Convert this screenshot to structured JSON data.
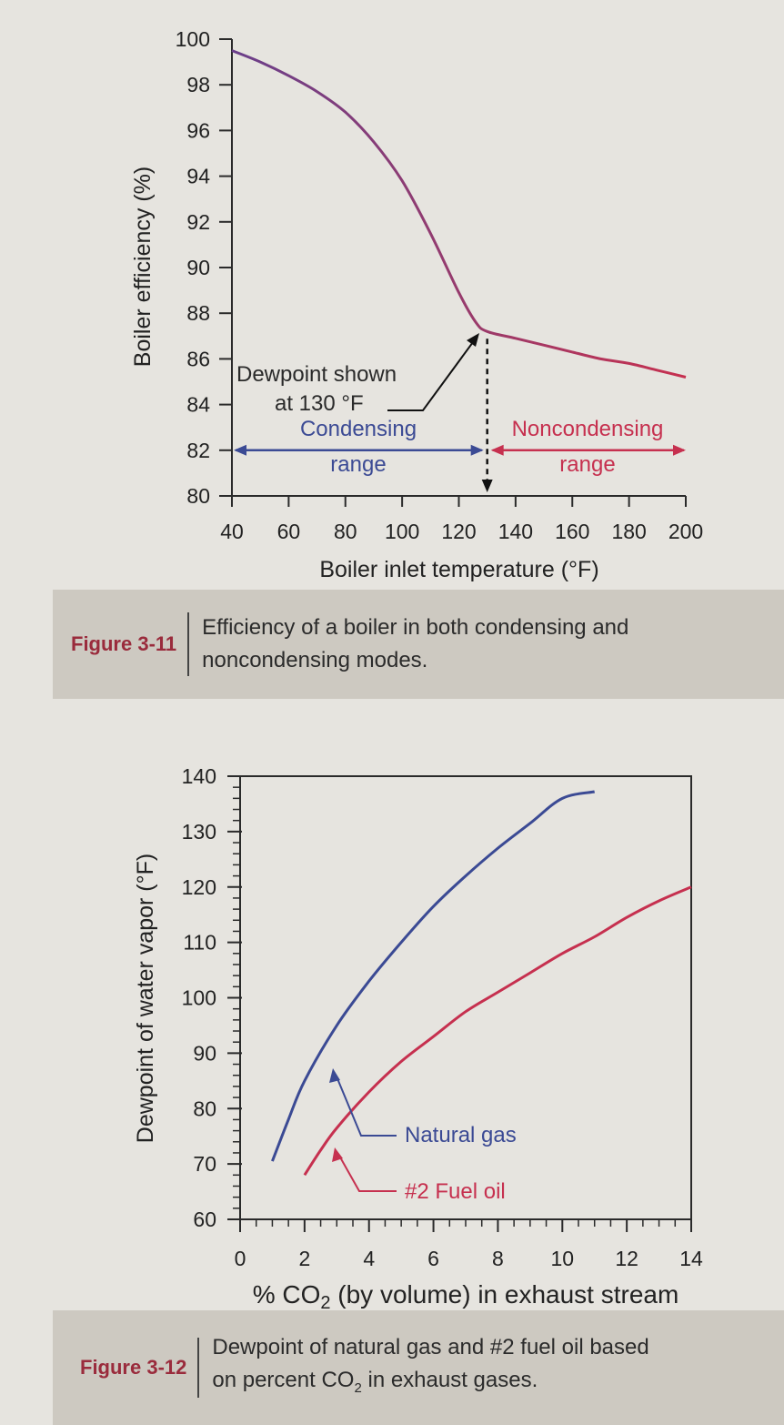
{
  "colors": {
    "blue": "#3b4a94",
    "red": "#c6304f",
    "axis": "#2a2a2a",
    "curve": "#8a3b6b"
  },
  "figure_11": {
    "caption_number": "Figure 3-11",
    "caption_line1": "Efficiency of a boiler in both condensing and",
    "caption_line2": "noncondensing modes.",
    "annotation_line1": "Dewpoint shown",
    "annotation_line2": "at 130 °F",
    "condensing_line1": "Condensing",
    "condensing_line2": "range",
    "noncondensing_line1": "Noncondensing",
    "noncondensing_line2": "range"
  },
  "figure_12": {
    "caption_number": "Figure 3-12",
    "caption_line1": "Dewpoint of natural gas and #2 fuel oil based",
    "caption_line2_pre": "on percent CO",
    "caption_line2_sub": "2",
    "caption_line2_post": " in exhaust gases.",
    "natural_gas_label": "Natural gas",
    "fuel_oil_label": "#2 Fuel oil",
    "xlabel_pre": "% CO",
    "xlabel_sub": "2",
    "xlabel_post": " (by volume) in exhaust stream"
  },
  "chart_data": [
    {
      "type": "line",
      "title": "",
      "xlabel": "Boiler inlet temperature (°F)",
      "ylabel": "Boiler efficiency (%)",
      "xlim": [
        40,
        200
      ],
      "ylim": [
        80,
        100
      ],
      "xticks": [
        40,
        60,
        80,
        100,
        120,
        140,
        160,
        180,
        200
      ],
      "yticks": [
        80,
        82,
        84,
        86,
        88,
        90,
        92,
        94,
        96,
        98,
        100
      ],
      "grid": false,
      "dewpoint_x": 130,
      "series": [
        {
          "x": [
            40,
            50,
            60,
            70,
            80,
            90,
            100,
            110,
            120,
            126,
            130,
            140,
            150,
            160,
            170,
            180,
            190,
            200
          ],
          "y": [
            99.5,
            99.0,
            98.4,
            97.7,
            96.8,
            95.5,
            93.8,
            91.5,
            88.9,
            87.6,
            87.2,
            86.9,
            86.6,
            86.3,
            86.0,
            85.8,
            85.5,
            85.2
          ]
        }
      ]
    },
    {
      "type": "line",
      "title": "",
      "xlabel": "% CO2 (by volume) in exhaust stream",
      "ylabel": "Dewpoint of water vapor (°F)",
      "xlim": [
        0,
        14
      ],
      "ylim": [
        60,
        140
      ],
      "xticks": [
        0,
        2,
        4,
        6,
        8,
        10,
        12,
        14
      ],
      "yticks": [
        60,
        70,
        80,
        90,
        100,
        110,
        120,
        130,
        140
      ],
      "grid": false,
      "series": [
        {
          "name": "Natural gas",
          "x": [
            1,
            1.5,
            2,
            3,
            4,
            5,
            6,
            7,
            8,
            9,
            10,
            11
          ],
          "y": [
            70.5,
            78,
            85,
            95,
            103,
            110,
            116.5,
            122,
            127,
            131.5,
            136,
            140.5
          ]
        },
        {
          "name": "#2 Fuel oil",
          "x": [
            2,
            2.5,
            3,
            4,
            5,
            6,
            7,
            8,
            9,
            10,
            11,
            12,
            13,
            14
          ],
          "y": [
            68,
            72.5,
            76.5,
            83,
            88.5,
            93,
            97.5,
            101,
            104.5,
            108,
            111,
            114.5,
            117.5,
            120
          ]
        }
      ]
    }
  ]
}
